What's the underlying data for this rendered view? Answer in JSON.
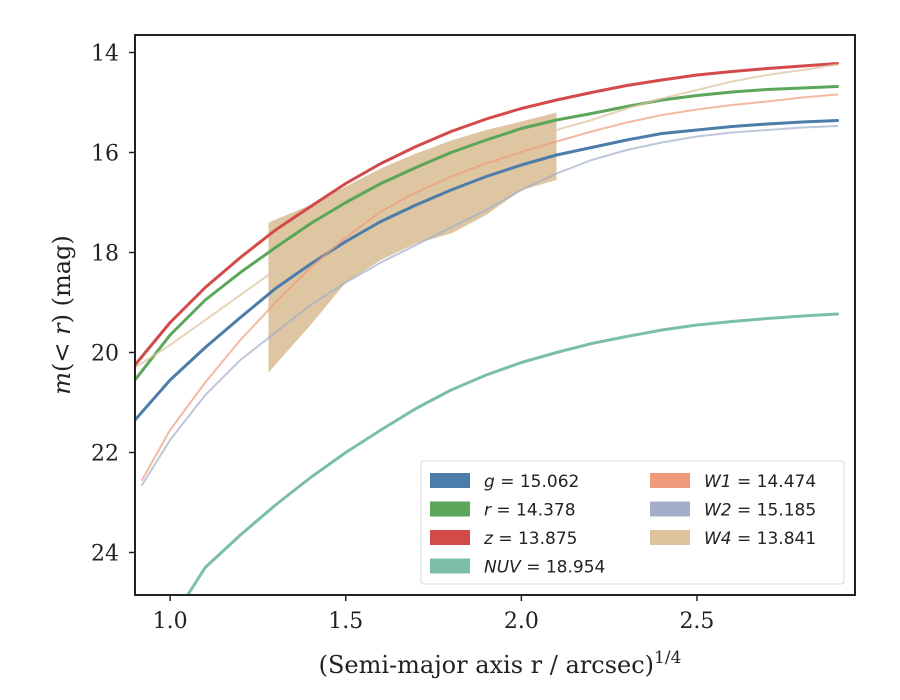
{
  "chart_data": {
    "type": "line",
    "xlabel": "(Semi-major axis r / arcsec)",
    "xlabel_superscript": "1/4",
    "ylabel_prefix": "m(",
    "ylabel_math": "< r",
    "ylabel_suffix": ") (mag)",
    "xlim": [
      0.9,
      2.95
    ],
    "ylim": [
      24.85,
      13.65
    ],
    "y_inverted": true,
    "xticks": [
      1.0,
      1.5,
      2.0,
      2.5
    ],
    "xtick_labels": [
      "1.0",
      "1.5",
      "2.0",
      "2.5"
    ],
    "yticks": [
      14,
      16,
      18,
      20,
      22,
      24
    ],
    "ytick_labels": [
      "14",
      "16",
      "18",
      "20",
      "22",
      "24"
    ],
    "grid": false,
    "legend_placement": "lower right",
    "series": [
      {
        "name": "g",
        "label_var": "g",
        "label_value": "= 15.062",
        "color": "#4c7daa",
        "x": [
          0.9,
          1.0,
          1.1,
          1.2,
          1.3,
          1.4,
          1.5,
          1.6,
          1.7,
          1.8,
          1.9,
          2.0,
          2.1,
          2.2,
          2.3,
          2.4,
          2.5,
          2.6,
          2.7,
          2.8,
          2.9
        ],
        "y": [
          21.35,
          20.55,
          19.9,
          19.3,
          18.72,
          18.23,
          17.78,
          17.38,
          17.05,
          16.75,
          16.48,
          16.25,
          16.05,
          15.9,
          15.75,
          15.62,
          15.55,
          15.48,
          15.43,
          15.39,
          15.36
        ],
        "band_upper": [],
        "band_lower": []
      },
      {
        "name": "r",
        "label_var": "r",
        "label_value": "= 14.378",
        "color": "#5ba65a",
        "x": [
          0.9,
          1.0,
          1.1,
          1.2,
          1.3,
          1.4,
          1.5,
          1.6,
          1.7,
          1.8,
          1.9,
          2.0,
          2.1,
          2.2,
          2.3,
          2.4,
          2.5,
          2.6,
          2.7,
          2.8,
          2.9
        ],
        "y": [
          20.55,
          19.65,
          18.95,
          18.4,
          17.9,
          17.42,
          17.0,
          16.62,
          16.3,
          16.0,
          15.75,
          15.52,
          15.35,
          15.22,
          15.08,
          14.95,
          14.86,
          14.79,
          14.74,
          14.71,
          14.68
        ],
        "band_upper": [],
        "band_lower": []
      },
      {
        "name": "z",
        "label_var": "z",
        "label_value": "= 13.875",
        "color": "#d44a4a",
        "x": [
          0.9,
          1.0,
          1.1,
          1.2,
          1.3,
          1.4,
          1.5,
          1.6,
          1.7,
          1.8,
          1.9,
          2.0,
          2.1,
          2.2,
          2.3,
          2.4,
          2.5,
          2.6,
          2.7,
          2.8,
          2.9
        ],
        "y": [
          20.25,
          19.4,
          18.7,
          18.1,
          17.55,
          17.08,
          16.62,
          16.22,
          15.88,
          15.58,
          15.33,
          15.12,
          14.95,
          14.8,
          14.66,
          14.55,
          14.45,
          14.38,
          14.32,
          14.27,
          14.22
        ],
        "band_upper": [],
        "band_lower": []
      },
      {
        "name": "NUV",
        "label_var": "NUV",
        "label_value": "= 18.954",
        "color": "#7cbfa9",
        "x": [
          1.05,
          1.1,
          1.2,
          1.3,
          1.4,
          1.5,
          1.6,
          1.7,
          1.8,
          1.9,
          2.0,
          2.1,
          2.2,
          2.3,
          2.4,
          2.5,
          2.6,
          2.7,
          2.8,
          2.9
        ],
        "y": [
          24.85,
          24.3,
          23.65,
          23.05,
          22.5,
          22.0,
          21.55,
          21.12,
          20.75,
          20.45,
          20.2,
          20.0,
          19.82,
          19.68,
          19.55,
          19.45,
          19.38,
          19.32,
          19.27,
          19.23
        ],
        "band_upper": [],
        "band_lower": []
      },
      {
        "name": "W1",
        "label_var": "W1",
        "label_value": "= 14.474",
        "color": "#ee9b7b",
        "x": [
          0.92,
          1.0,
          1.1,
          1.2,
          1.3,
          1.4,
          1.5,
          1.6,
          1.7,
          1.8,
          1.9,
          2.0,
          2.1,
          2.2,
          2.3,
          2.4,
          2.5,
          2.6,
          2.7,
          2.8,
          2.9
        ],
        "y": [
          22.55,
          21.55,
          20.6,
          19.75,
          19.0,
          18.3,
          17.7,
          17.18,
          16.8,
          16.48,
          16.22,
          15.99,
          15.78,
          15.58,
          15.4,
          15.25,
          15.14,
          15.05,
          14.98,
          14.9,
          14.84
        ],
        "band_upper": [],
        "band_lower": []
      },
      {
        "name": "W2",
        "label_var": "W2",
        "label_value": "= 15.185",
        "color": "#a3aecb",
        "x": [
          0.92,
          1.0,
          1.1,
          1.2,
          1.3,
          1.4,
          1.5,
          1.6,
          1.7,
          1.8,
          1.9,
          2.0,
          2.1,
          2.2,
          2.3,
          2.4,
          2.5,
          2.6,
          2.7,
          2.8,
          2.9
        ],
        "y": [
          22.65,
          21.75,
          20.85,
          20.15,
          19.6,
          19.05,
          18.6,
          18.2,
          17.85,
          17.5,
          17.15,
          16.75,
          16.42,
          16.15,
          15.95,
          15.8,
          15.68,
          15.6,
          15.55,
          15.5,
          15.47
        ],
        "band_upper": [],
        "band_lower": []
      },
      {
        "name": "W4",
        "label_var": "W4",
        "label_value": "= 13.841",
        "color": "#dcc39e",
        "x": [
          0.9,
          1.0,
          1.1,
          1.2,
          1.3,
          1.4,
          1.5,
          1.6,
          1.7,
          1.8,
          1.9,
          2.0,
          2.1,
          2.2,
          2.3,
          2.4,
          2.5,
          2.6,
          2.7,
          2.8,
          2.9
        ],
        "y": [
          20.3,
          19.85,
          19.35,
          18.85,
          18.35,
          17.85,
          17.4,
          16.98,
          16.6,
          16.25,
          15.95,
          15.75,
          15.55,
          15.35,
          15.12,
          14.92,
          14.75,
          14.58,
          14.45,
          14.35,
          14.24
        ],
        "band_x": [
          1.28,
          1.4,
          1.5,
          1.6,
          1.7,
          1.8,
          1.9,
          2.0,
          2.1
        ],
        "band_upper": [
          17.4,
          17.05,
          16.68,
          16.32,
          16.02,
          15.76,
          15.55,
          15.38,
          15.2
        ],
        "band_lower": [
          20.4,
          19.45,
          18.6,
          18.15,
          17.82,
          17.62,
          17.25,
          16.75,
          16.55
        ]
      }
    ]
  }
}
